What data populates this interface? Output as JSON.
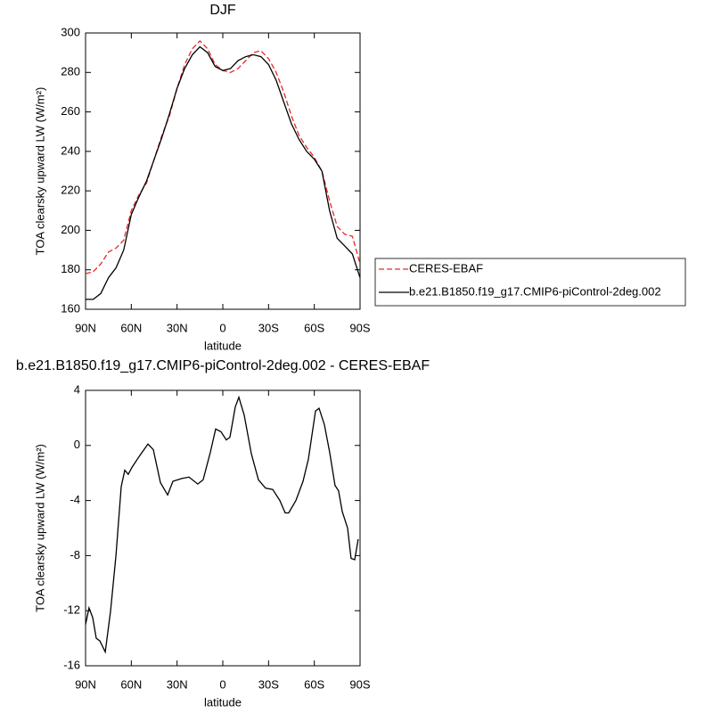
{
  "chart_data": [
    {
      "type": "line",
      "title": "DJF",
      "xlabel": "latitude",
      "ylabel": "TOA clearsky upward LW (W/m²)",
      "x": [
        90,
        85,
        80,
        75,
        70,
        65,
        60,
        55,
        50,
        45,
        40,
        35,
        30,
        25,
        20,
        15,
        10,
        5,
        0,
        -5,
        -10,
        -15,
        -20,
        -25,
        -30,
        -35,
        -40,
        -45,
        -50,
        -55,
        -60,
        -65,
        -70,
        -75,
        -80,
        -85,
        -90
      ],
      "series": [
        {
          "name": "CERES-EBAF",
          "color": "#e8272a",
          "dash": true,
          "values": [
            178,
            179,
            183,
            189,
            191,
            195,
            210,
            218,
            224,
            236,
            248,
            258,
            272,
            284,
            292,
            296,
            292,
            284,
            281,
            280,
            282,
            286,
            290,
            291,
            287,
            280,
            270,
            258,
            248,
            242,
            237,
            230,
            215,
            202,
            198,
            197,
            183
          ]
        },
        {
          "name": "b.e21.B1850.f19_g17.CMIP6-piControl-2deg.002",
          "color": "#000000",
          "dash": false,
          "values": [
            165,
            165,
            168,
            176,
            181,
            190,
            208,
            217,
            225,
            236,
            247,
            259,
            272,
            282,
            289,
            293,
            290,
            283,
            281,
            282,
            286,
            288,
            289,
            288,
            284,
            276,
            265,
            254,
            246,
            240,
            236,
            230,
            210,
            196,
            192,
            188,
            176
          ]
        }
      ],
      "xlim": [
        90,
        -90
      ],
      "xticks": [
        {
          "value": 90,
          "label": "90N"
        },
        {
          "value": 60,
          "label": "60N"
        },
        {
          "value": 30,
          "label": "30N"
        },
        0,
        {
          "value": -30,
          "label": "30S"
        },
        {
          "value": -60,
          "label": "60S"
        },
        {
          "value": -90,
          "label": "90S"
        }
      ],
      "ylim": [
        160,
        300
      ],
      "yticks": [
        160,
        180,
        200,
        220,
        240,
        260,
        280,
        300
      ],
      "legend": "right"
    },
    {
      "type": "line",
      "title": "b.e21.B1850.f19_g17.CMIP6-piControl-2deg.002 - CERES-EBAF",
      "xlabel": "latitude",
      "ylabel": "TOA clearsky upward LW (W/m²)",
      "x": [
        90,
        87.7,
        85.3,
        83,
        80.6,
        77.1,
        73.6,
        70.1,
        66.6,
        64.3,
        62,
        59.6,
        54.9,
        49.1,
        45.6,
        40.9,
        36.2,
        32.7,
        26.9,
        22.2,
        16.4,
        12.9,
        8.2,
        4.7,
        1.2,
        -2.3,
        -4.7,
        -8.2,
        -10.5,
        -14,
        -18.7,
        -23.4,
        -28,
        -32.7,
        -37.4,
        -40.9,
        -43.2,
        -47.9,
        -52.6,
        -56.1,
        -60.8,
        -63.1,
        -66.6,
        -70.1,
        -73.6,
        -75.9,
        -78.3,
        -81.8,
        -84.1,
        -86.5,
        -88.8
      ],
      "series": [
        {
          "name": null,
          "color": "#000000",
          "dash": false,
          "values": [
            -13,
            -11.8,
            -12.5,
            -14,
            -14.2,
            -15,
            -12,
            -8,
            -3,
            -1.8,
            -2.1,
            -1.6,
            -0.8,
            0.1,
            -0.3,
            -2.7,
            -3.6,
            -2.6,
            -2.4,
            -2.3,
            -2.8,
            -2.5,
            -0.5,
            1.2,
            1.0,
            0.4,
            0.6,
            2.8,
            3.5,
            2.2,
            -0.6,
            -2.5,
            -3.1,
            -3.2,
            -4.0,
            -4.9,
            -4.9,
            -4.0,
            -2.6,
            -1.0,
            2.5,
            2.7,
            1.5,
            -0.5,
            -2.9,
            -3.3,
            -4.8,
            -6,
            -8.2,
            -8.3,
            -6.8
          ]
        }
      ],
      "xlim": [
        90,
        -90
      ],
      "xticks": [
        {
          "value": 90,
          "label": "90N"
        },
        {
          "value": 60,
          "label": "60N"
        },
        {
          "value": 30,
          "label": "30N"
        },
        0,
        {
          "value": -30,
          "label": "30S"
        },
        {
          "value": -60,
          "label": "60S"
        },
        {
          "value": -90,
          "label": "90S"
        }
      ],
      "ylim": [
        -16,
        4
      ],
      "yticks": [
        -16,
        -12,
        -8,
        -4,
        0,
        4
      ]
    }
  ]
}
